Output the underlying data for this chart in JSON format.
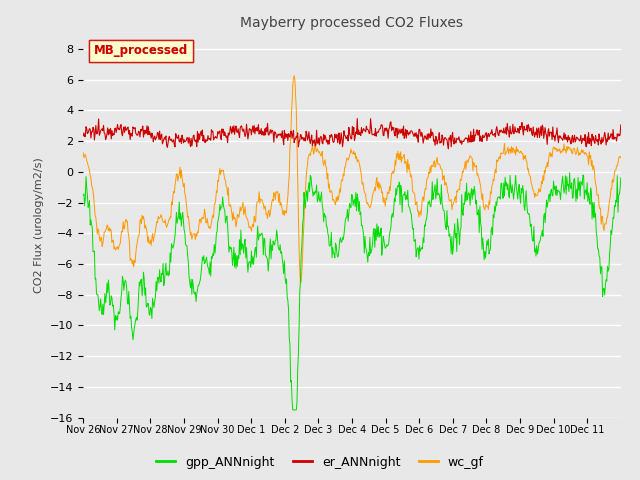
{
  "title": "Mayberry processed CO2 Fluxes",
  "ylabel": "CO2 Flux (urology/m2/s)",
  "ylim": [
    -16,
    9
  ],
  "yticks": [
    8,
    6,
    4,
    2,
    0,
    -2,
    -4,
    -6,
    -8,
    -10,
    -12,
    -14,
    -16
  ],
  "xtick_labels": [
    "Nov 26",
    "Nov 27",
    "Nov 28",
    "Nov 29",
    "Nov 30",
    "Dec 1",
    "Dec 2",
    "Dec 3",
    "Dec 4",
    "Dec 5",
    "Dec 6",
    "Dec 7",
    "Dec 8",
    "Dec 9",
    "Dec 10",
    "Dec 11"
  ],
  "legend_label": "MB_processed",
  "legend_text_color": "#cc0000",
  "legend_box_facecolor": "#ffffcc",
  "legend_box_edgecolor": "#cc0000",
  "colors": {
    "gpp_ANNnight": "#00dd00",
    "er_ANNnight": "#cc0000",
    "wc_gf": "#ff9900"
  },
  "line_labels": [
    "gpp_ANNnight",
    "er_ANNnight",
    "wc_gf"
  ],
  "background_color": "#e8e8e8",
  "grid_color": "#ffffff",
  "figsize": [
    6.4,
    4.8
  ],
  "dpi": 100
}
